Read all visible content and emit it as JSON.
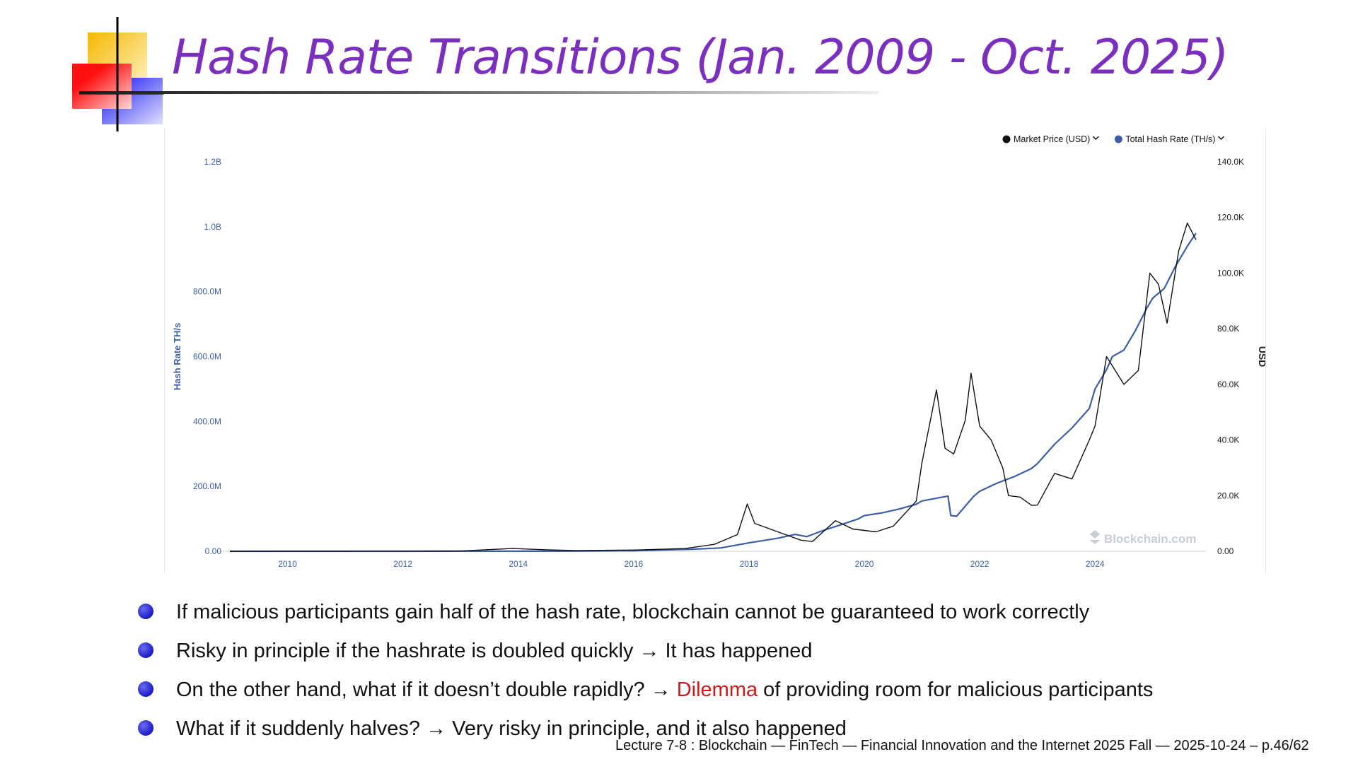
{
  "slide": {
    "title": "Hash Rate Transitions (Jan. 2009 - Oct. 2025)",
    "bullets": [
      {
        "pre": "If malicious participants gain half of the hash rate, blockchain cannot be guaranteed to work correctly",
        "highlight": "",
        "post": ""
      },
      {
        "pre": "Risky in principle if the hashrate is doubled quickly → It has happened",
        "highlight": "",
        "post": ""
      },
      {
        "pre": "On the other hand, what if it doesn’t double rapidly? → ",
        "highlight": "Dilemma",
        "post": " of providing room for malicious participants"
      },
      {
        "pre": "What if it suddenly halves? → Very risky in principle, and it also happened",
        "highlight": "",
        "post": ""
      }
    ],
    "footer": "Lecture 7-8 : Blockchain — FinTech — Financial Innovation and the Internet 2025 Fall — 2025-10-24 – p.46/62"
  },
  "colors": {
    "title": "#7b2fbf",
    "hash_series": "#3d5ea6",
    "price_series": "#111111",
    "highlight": "#cc1a1a",
    "bullet": "#2a2ad0"
  },
  "chart_data": {
    "type": "line",
    "watermark": "Blockchain.com",
    "legend": [
      {
        "name": "Market Price (USD)",
        "color": "#111111",
        "marker": "●"
      },
      {
        "name": "Total Hash Rate (TH/s)",
        "color": "#3d5ea6",
        "marker": "●"
      }
    ],
    "legend_position": "top-right",
    "xlim": [
      2009.0,
      2025.8
    ],
    "x_ticks": [
      {
        "value": 2010,
        "label": "2010"
      },
      {
        "value": 2012,
        "label": "2012"
      },
      {
        "value": 2014,
        "label": "2014"
      },
      {
        "value": 2016,
        "label": "2016"
      },
      {
        "value": 2018,
        "label": "2018"
      },
      {
        "value": 2020,
        "label": "2020"
      },
      {
        "value": 2022,
        "label": "2022"
      },
      {
        "value": 2024,
        "label": "2024"
      }
    ],
    "y_left": {
      "label": "Hash Rate TH/s",
      "ylim": [
        0,
        1200000000
      ],
      "ticks": [
        {
          "value": 0,
          "label": "0.00"
        },
        {
          "value": 200000000,
          "label": "200.0M"
        },
        {
          "value": 400000000,
          "label": "400.0M"
        },
        {
          "value": 600000000,
          "label": "600.0M"
        },
        {
          "value": 800000000,
          "label": "800.0M"
        },
        {
          "value": 1000000000,
          "label": "1.0B"
        },
        {
          "value": 1200000000,
          "label": "1.2B"
        }
      ]
    },
    "y_right": {
      "label": "USD",
      "ylim": [
        0,
        140000
      ],
      "ticks": [
        {
          "value": 0,
          "label": "0.00"
        },
        {
          "value": 20000,
          "label": "20.0K"
        },
        {
          "value": 40000,
          "label": "40.0K"
        },
        {
          "value": 60000,
          "label": "60.0K"
        },
        {
          "value": 80000,
          "label": "80.0K"
        },
        {
          "value": 100000,
          "label": "100.0K"
        },
        {
          "value": 120000,
          "label": "120.0K"
        },
        {
          "value": 140000,
          "label": "140.0K"
        }
      ]
    },
    "series": [
      {
        "name": "Total Hash Rate (TH/s)",
        "axis": "left",
        "color": "#3d5ea6",
        "x": [
          2009.0,
          2012.0,
          2014.0,
          2015.0,
          2016.0,
          2017.0,
          2017.5,
          2018.0,
          2018.5,
          2018.8,
          2019.0,
          2019.3,
          2019.6,
          2019.9,
          2020.0,
          2020.3,
          2020.6,
          2020.9,
          2021.0,
          2021.3,
          2021.45,
          2021.5,
          2021.6,
          2021.9,
          2022.0,
          2022.3,
          2022.6,
          2022.9,
          2023.0,
          2023.3,
          2023.6,
          2023.9,
          2024.0,
          2024.2,
          2024.3,
          2024.5,
          2024.7,
          2024.9,
          2025.0,
          2025.2,
          2025.4,
          2025.6,
          2025.75
        ],
        "y": [
          0,
          0,
          300000,
          400000,
          1500000,
          6000000,
          10000000,
          26000000,
          40000000,
          52000000,
          45000000,
          65000000,
          82000000,
          100000000,
          110000000,
          118000000,
          130000000,
          145000000,
          155000000,
          165000000,
          170000000,
          110000000,
          108000000,
          170000000,
          185000000,
          210000000,
          230000000,
          255000000,
          270000000,
          330000000,
          380000000,
          440000000,
          500000000,
          560000000,
          600000000,
          620000000,
          680000000,
          750000000,
          780000000,
          810000000,
          880000000,
          940000000,
          980000000
        ]
      },
      {
        "name": "Market Price (USD)",
        "axis": "right",
        "color": "#111111",
        "x": [
          2009.0,
          2013.0,
          2013.9,
          2014.5,
          2015.0,
          2016.0,
          2016.9,
          2017.4,
          2017.8,
          2017.97,
          2018.1,
          2018.5,
          2018.9,
          2019.1,
          2019.5,
          2019.8,
          2020.2,
          2020.5,
          2020.9,
          2021.0,
          2021.25,
          2021.4,
          2021.55,
          2021.75,
          2021.85,
          2022.0,
          2022.2,
          2022.4,
          2022.5,
          2022.7,
          2022.9,
          2023.0,
          2023.3,
          2023.6,
          2023.9,
          2024.0,
          2024.2,
          2024.5,
          2024.75,
          2024.95,
          2025.1,
          2025.25,
          2025.45,
          2025.6,
          2025.75
        ],
        "y": [
          0,
          100,
          1000,
          500,
          250,
          430,
          1000,
          2500,
          6000,
          17000,
          10000,
          7000,
          4000,
          3500,
          11000,
          8000,
          7000,
          9000,
          18000,
          32000,
          58000,
          37000,
          35000,
          47000,
          64000,
          45000,
          40000,
          30000,
          20000,
          19500,
          16500,
          16600,
          28000,
          26000,
          40000,
          45000,
          70000,
          60000,
          65000,
          100000,
          96000,
          82000,
          108000,
          118000,
          112000
        ]
      }
    ]
  }
}
